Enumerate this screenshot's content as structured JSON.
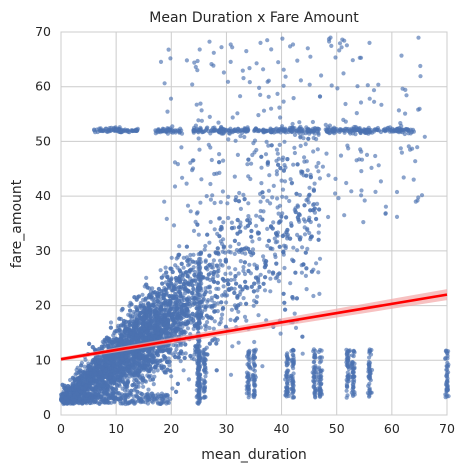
{
  "chart_data": {
    "type": "scatter",
    "title": "Mean Duration x Fare Amount",
    "xlabel": "mean_duration",
    "ylabel": "fare_amount",
    "xlim": [
      0,
      70
    ],
    "ylim": [
      0,
      70
    ],
    "xticks": [
      "0",
      "10",
      "20",
      "30",
      "40",
      "50",
      "60",
      "70"
    ],
    "yticks": [
      "0",
      "10",
      "20",
      "30",
      "40",
      "50",
      "60",
      "70"
    ],
    "grid": true,
    "point_color": "#4c72b0",
    "regression": {
      "color": "#ff0000",
      "ci_color": "#f4a6a6",
      "x": [
        0,
        70
      ],
      "y": [
        10.2,
        22.0
      ]
    },
    "bands": {
      "flat_fare_y": 52,
      "flat_fare_segments": [
        [
          6,
          14
        ],
        [
          17,
          22
        ],
        [
          24,
          34
        ],
        [
          35,
          47
        ],
        [
          48,
          64
        ]
      ],
      "vertical_stacks_x": [
        25,
        26,
        34,
        35,
        41,
        42,
        46,
        47,
        52,
        53,
        56,
        70
      ]
    }
  }
}
